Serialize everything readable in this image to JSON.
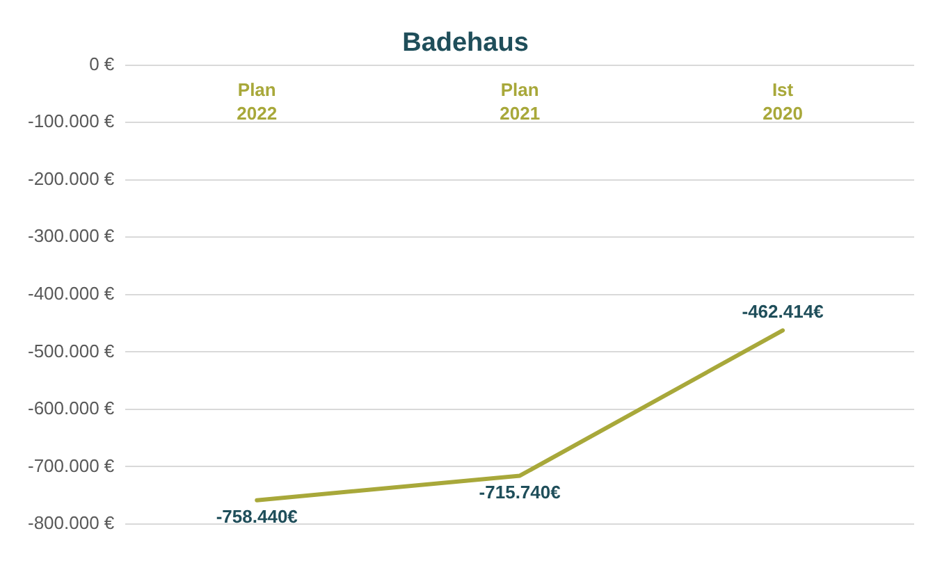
{
  "chart_data": {
    "type": "line",
    "title": "Badehaus",
    "categories": [
      "Plan 2022",
      "Plan 2021",
      "Ist 2020"
    ],
    "series": [
      {
        "color": "#a8a83a",
        "values": [
          -758440,
          -715740,
          -462414
        ],
        "value_labels": [
          "-758.440€",
          "-715.740€",
          "-462.414€"
        ]
      }
    ],
    "ylim": [
      -800000,
      0
    ],
    "yticks": [
      {
        "value": 0,
        "label": "0 €"
      },
      {
        "value": -100000,
        "label": "-100.000 €"
      },
      {
        "value": -200000,
        "label": "-200.000 €"
      },
      {
        "value": -300000,
        "label": "-300.000 €"
      },
      {
        "value": -400000,
        "label": "-400.000 €"
      },
      {
        "value": -500000,
        "label": "-500.000 €"
      },
      {
        "value": -600000,
        "label": "-600.000 €"
      },
      {
        "value": -700000,
        "label": "-700.000 €"
      },
      {
        "value": -800000,
        "label": "-800.000 €"
      }
    ],
    "grid": "y",
    "legend": false,
    "marker": "none",
    "line_style": "solid"
  }
}
